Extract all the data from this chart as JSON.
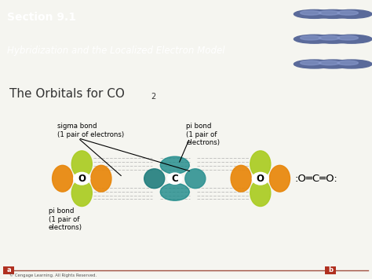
{
  "title_section": "Section 9.1",
  "subtitle_section": "Hybridization and the Localized Electron Model",
  "main_title": "The Orbitals for CO",
  "main_title_sub2": "2",
  "header_bg": "#4a5578",
  "header_text_color": "#ffffff",
  "body_bg": "#f5f5f0",
  "label_sigma": "sigma bond\n(1 pair of electrons)",
  "label_pi_top": "pi bond\n(1 pair of\nelectrons)",
  "label_pi_bottom": "pi bond\n(1 pair of\nelectrons)",
  "label_O_left": "O",
  "label_C": "C",
  "label_O_right": "O",
  "co2_formula": ":O═C═O:",
  "footer_a": "a",
  "footer_b": "b",
  "copyright": "© Cengage Learning. All Rights Reserved.",
  "orange_color": "#E8860A",
  "yellow_green_color": "#AACC22",
  "teal_color": "#2A9090",
  "footer_line_color": "#a05040",
  "footer_box_color": "#b03020"
}
